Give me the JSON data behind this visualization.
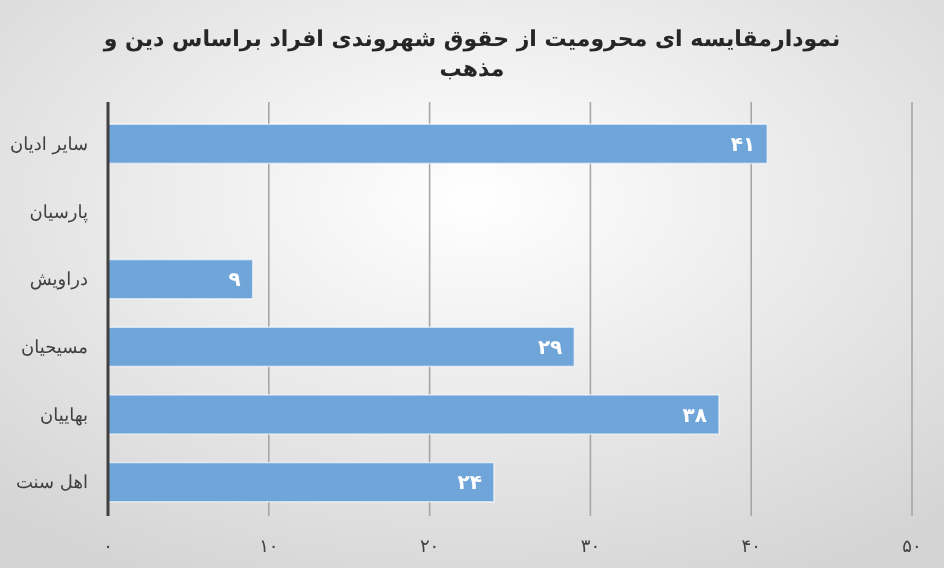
{
  "chart_data": {
    "type": "bar",
    "orientation": "horizontal",
    "title": "نمودارمقایسه ای محرومیت از حقوق شهروندی افراد براساس دین و مذهب",
    "categories": [
      "سایر ادیان",
      "پارسیان",
      "دراویش",
      "مسیحیان",
      "بهاییان",
      "اهل سنت"
    ],
    "values": [
      41,
      null,
      9,
      29,
      38,
      24
    ],
    "value_labels": [
      "۴۱",
      null,
      "۹",
      "۲۹",
      "۳۸",
      "۲۴"
    ],
    "color": "#6fa5d8",
    "xlim": [
      0,
      50
    ],
    "xticks": [
      {
        "value": 0,
        "label": "۰"
      },
      {
        "value": 10,
        "label": "۱۰"
      },
      {
        "value": 20,
        "label": "۲۰"
      },
      {
        "value": 30,
        "label": "۳۰"
      },
      {
        "value": 40,
        "label": "۴۰"
      },
      {
        "value": 50,
        "label": "۵۰"
      }
    ],
    "grid": "x"
  }
}
